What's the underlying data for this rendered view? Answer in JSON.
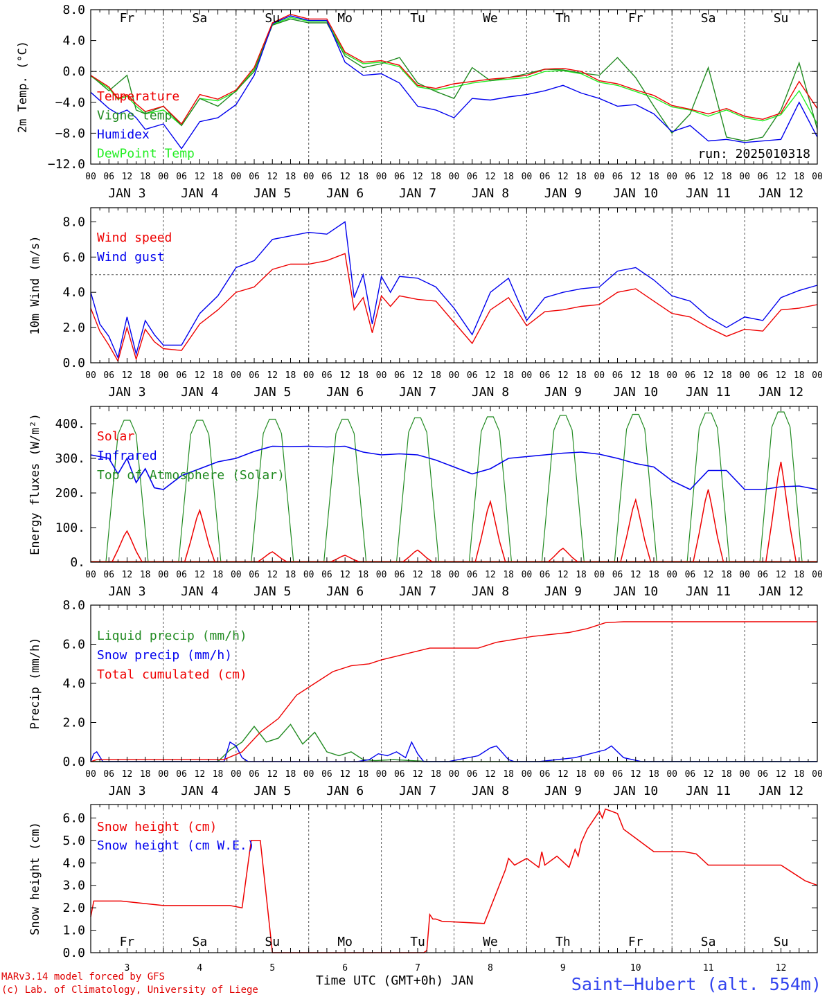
{
  "colors": {
    "red": "#ee0000",
    "blue": "#0000ee",
    "green": "#228b22",
    "lightgreen": "#22ee22",
    "black": "#000000"
  },
  "x_axis": {
    "hour_labels": [
      "00",
      "06",
      "12",
      "18"
    ],
    "date_labels": [
      "JAN  3",
      "JAN  4",
      "JAN  5",
      "JAN  6",
      "JAN  7",
      "JAN  8",
      "JAN  9",
      "JAN 10",
      "JAN 11",
      "JAN 12"
    ],
    "day_names": [
      "Fr",
      "Sa",
      "Su",
      "Mo",
      "Tu",
      "We",
      "Th",
      "Fr",
      "Sa",
      "Su"
    ],
    "day_numbers": [
      "3",
      "4",
      "5",
      "6",
      "7",
      "8",
      "9",
      "10",
      "11",
      "12"
    ],
    "weekend_days": [
      1,
      2,
      8,
      9
    ],
    "title": "Time UTC (GMT+0h) JAN"
  },
  "footer": {
    "credit_line1": "MARv3.14 model forced by GFS",
    "credit_line2": "(c) Lab. of Climatology, University of Liege",
    "station": "Saint–Hubert (alt. 554m)"
  },
  "chart_data": [
    {
      "type": "line",
      "ylabel": "2m Temp. (°C)",
      "ylim": [
        -12,
        8
      ],
      "yticks": [
        "8.0",
        "4.0",
        "0.0",
        "−4.0",
        "−8.0",
        "−12.0"
      ],
      "run_label": "run: 2025010318",
      "x_unit": "hours since JAN 3 00 UTC",
      "x": [
        0,
        6,
        9,
        12,
        15,
        18,
        24,
        30,
        36,
        42,
        48,
        54,
        60,
        66,
        72,
        78,
        84,
        90,
        96,
        102,
        108,
        114,
        120,
        126,
        132,
        138,
        144,
        150,
        156,
        162,
        168,
        174,
        180,
        186,
        192,
        198,
        204,
        210,
        216,
        222,
        228,
        234,
        240
      ],
      "series": [
        {
          "name": "Temperature",
          "color": "red",
          "values": [
            -0.5,
            -2.0,
            -3.5,
            -3.0,
            -4.2,
            -5.2,
            -4.5,
            -6.8,
            -3.0,
            -3.6,
            -2.4,
            0.5,
            6.3,
            7.4,
            6.8,
            6.8,
            2.5,
            1.2,
            1.4,
            0.8,
            -1.8,
            -2.2,
            -1.6,
            -1.3,
            -1.0,
            -0.8,
            -0.5,
            0.3,
            0.4,
            0.0,
            -1.2,
            -1.6,
            -2.4,
            -3.1,
            -4.4,
            -4.9,
            -5.5,
            -4.8,
            -5.8,
            -6.2,
            -5.4,
            -1.3,
            -4.8
          ]
        },
        {
          "name": "Vigne temp",
          "color": "green",
          "values": [
            -0.5,
            -2.5,
            -1.5,
            -0.5,
            -5.0,
            -5.5,
            -4.5,
            -7.0,
            -3.5,
            -4.5,
            -2.5,
            0.0,
            6.0,
            6.8,
            6.3,
            6.3,
            2.0,
            0.5,
            1.0,
            1.8,
            -1.5,
            -2.6,
            -3.5,
            0.5,
            -1.2,
            -0.8,
            -0.3,
            0.3,
            0.2,
            -0.2,
            -0.5,
            1.8,
            -0.8,
            -4.5,
            -8.0,
            -5.5,
            0.5,
            -8.5,
            -9.0,
            -8.5,
            -5.0,
            1.1,
            -7.5
          ]
        },
        {
          "name": "Humidex",
          "color": "blue",
          "values": [
            -2.7,
            -4.8,
            -5.5,
            -5.0,
            -6.0,
            -7.5,
            -6.8,
            -10.0,
            -6.5,
            -6.0,
            -4.3,
            -0.5,
            6.2,
            7.2,
            6.6,
            6.6,
            1.2,
            -0.5,
            -0.3,
            -1.5,
            -4.5,
            -5.0,
            -6.0,
            -3.5,
            -3.7,
            -3.3,
            -3.0,
            -2.5,
            -1.8,
            -2.8,
            -3.5,
            -4.5,
            -4.3,
            -5.5,
            -7.8,
            -7.0,
            -9.0,
            -8.8,
            -9.2,
            -9.0,
            -8.8,
            -4.0,
            -8.5
          ]
        },
        {
          "name": "DewPoint Temp",
          "color": "lightgreen",
          "values": [
            -0.6,
            -2.2,
            -3.6,
            -3.2,
            -4.5,
            -5.5,
            -5.0,
            -7.0,
            -3.5,
            -3.8,
            -2.6,
            0.3,
            6.1,
            7.0,
            6.5,
            6.5,
            2.3,
            1.0,
            1.2,
            0.6,
            -2.0,
            -2.4,
            -2.0,
            -1.5,
            -1.2,
            -1.0,
            -0.8,
            0.0,
            0.1,
            -0.3,
            -1.4,
            -1.8,
            -2.6,
            -3.4,
            -4.6,
            -5.0,
            -5.8,
            -5.0,
            -6.0,
            -6.4,
            -5.6,
            -2.5,
            -6.8
          ]
        }
      ]
    },
    {
      "type": "line",
      "ylabel": "10m Wind (m/s)",
      "ylim": [
        0,
        8.8
      ],
      "yticks": [
        "0.0",
        "2.0",
        "4.0",
        "6.0",
        "8.0"
      ],
      "reference_line": 5,
      "x": [
        0,
        3,
        6,
        9,
        12,
        15,
        18,
        21,
        24,
        30,
        36,
        42,
        48,
        54,
        60,
        66,
        72,
        78,
        84,
        87,
        90,
        93,
        96,
        99,
        102,
        108,
        114,
        120,
        126,
        132,
        138,
        144,
        150,
        156,
        162,
        168,
        174,
        180,
        186,
        192,
        198,
        204,
        210,
        216,
        222,
        228,
        234,
        240
      ],
      "series": [
        {
          "name": "Wind speed",
          "color": "red",
          "values": [
            3.1,
            1.8,
            1.0,
            0.1,
            2.0,
            0.2,
            1.9,
            1.2,
            0.8,
            0.7,
            2.2,
            3.0,
            4.0,
            4.3,
            5.3,
            5.6,
            5.6,
            5.8,
            6.2,
            3.0,
            3.7,
            1.7,
            3.8,
            3.2,
            3.8,
            3.6,
            3.5,
            2.3,
            1.1,
            3.0,
            3.7,
            2.1,
            2.9,
            3.0,
            3.2,
            3.3,
            4.0,
            4.2,
            3.5,
            2.8,
            2.6,
            2.0,
            1.5,
            1.9,
            1.8,
            3.0,
            3.1,
            3.3
          ]
        },
        {
          "name": "Wind gust",
          "color": "blue",
          "values": [
            4.0,
            2.2,
            1.5,
            0.3,
            2.6,
            0.5,
            2.4,
            1.6,
            1.0,
            1.0,
            2.8,
            3.8,
            5.4,
            5.8,
            7.0,
            7.2,
            7.4,
            7.3,
            8.0,
            3.7,
            5.0,
            2.2,
            4.9,
            4.0,
            4.9,
            4.8,
            4.3,
            3.1,
            1.6,
            4.0,
            4.8,
            2.4,
            3.7,
            4.0,
            4.2,
            4.3,
            5.2,
            5.4,
            4.7,
            3.8,
            3.5,
            2.6,
            2.0,
            2.6,
            2.4,
            3.7,
            4.1,
            4.4
          ]
        }
      ]
    },
    {
      "type": "line",
      "ylabel": "Energy fluxes (W/m²)",
      "ylim": [
        0,
        450
      ],
      "yticks": [
        "0.",
        "100.",
        "200.",
        "300.",
        "400."
      ],
      "x_unit": "hours since JAN 3 00 UTC",
      "solar_peaks": [
        90,
        150,
        30,
        20,
        35,
        175,
        40,
        180,
        210,
        290
      ],
      "toa_peaks": [
        410,
        410,
        413,
        413,
        417,
        420,
        424,
        427,
        431,
        434
      ],
      "infrared": {
        "x": [
          0,
          6,
          9,
          12,
          15,
          18,
          21,
          24,
          30,
          36,
          42,
          48,
          54,
          60,
          66,
          72,
          78,
          84,
          90,
          96,
          102,
          108,
          114,
          120,
          126,
          132,
          138,
          144,
          150,
          156,
          162,
          168,
          174,
          180,
          186,
          192,
          198,
          204,
          210,
          216,
          222,
          228,
          234,
          240
        ],
        "values": [
          310,
          300,
          255,
          300,
          230,
          270,
          215,
          210,
          250,
          270,
          290,
          300,
          320,
          335,
          334,
          335,
          333,
          335,
          318,
          310,
          313,
          310,
          295,
          275,
          255,
          270,
          300,
          305,
          310,
          315,
          318,
          312,
          300,
          285,
          275,
          235,
          210,
          265,
          265,
          210,
          210,
          218,
          220,
          210
        ]
      },
      "series_names": [
        {
          "name": "Solar",
          "color": "red"
        },
        {
          "name": "Infrared",
          "color": "blue"
        },
        {
          "name": "Top of Atmosphere (Solar)",
          "color": "green"
        }
      ]
    },
    {
      "type": "line",
      "ylabel": "Precip (mm/h)",
      "ylim": [
        0,
        8
      ],
      "yticks": [
        "0.0",
        "2.0",
        "4.0",
        "6.0",
        "8.0"
      ],
      "series": [
        {
          "name": "Liquid precip (mm/h)",
          "color": "green",
          "x": [
            0,
            42,
            46,
            50,
            54,
            58,
            62,
            66,
            70,
            74,
            78,
            82,
            86,
            90,
            94,
            100,
            106,
            112,
            120,
            168,
            240
          ],
          "values": [
            0,
            0,
            0.6,
            1.0,
            1.8,
            1.0,
            1.2,
            1.9,
            0.9,
            1.5,
            0.5,
            0.3,
            0.5,
            0.1,
            0.05,
            0.1,
            0.05,
            0,
            0,
            0,
            0
          ]
        },
        {
          "name": "Snow precip (mm/h)",
          "color": "blue",
          "x": [
            0,
            1,
            2,
            4,
            6,
            8,
            44,
            46,
            48,
            50,
            52,
            54,
            88,
            92,
            95,
            98,
            101,
            104,
            106,
            108,
            110,
            112,
            118,
            128,
            132,
            134,
            138,
            140,
            148,
            160,
            170,
            172,
            176,
            182,
            192,
            240
          ],
          "values": [
            0,
            0.4,
            0.5,
            0,
            0,
            0,
            0,
            1.0,
            0.8,
            0.2,
            0,
            0,
            0,
            0.1,
            0.4,
            0.3,
            0.5,
            0.2,
            1.0,
            0.4,
            0,
            0,
            0,
            0.3,
            0.7,
            0.8,
            0.1,
            0,
            0,
            0.2,
            0.6,
            0.8,
            0.2,
            0,
            0,
            0
          ]
        },
        {
          "name": "Total cumulated (cm)",
          "color": "red",
          "x": [
            0,
            2,
            44,
            50,
            56,
            62,
            68,
            74,
            80,
            86,
            92,
            96,
            104,
            112,
            118,
            128,
            134,
            146,
            158,
            164,
            170,
            176,
            182,
            240
          ],
          "values": [
            0,
            0.1,
            0.1,
            0.5,
            1.5,
            2.2,
            3.4,
            4.0,
            4.6,
            4.9,
            5.0,
            5.2,
            5.5,
            5.8,
            5.8,
            5.8,
            6.1,
            6.4,
            6.6,
            6.8,
            7.1,
            7.15,
            7.15,
            7.15
          ]
        }
      ]
    },
    {
      "type": "line",
      "ylabel": "Snow height (cm)",
      "ylim": [
        0,
        6.6
      ],
      "yticks": [
        "0.0",
        "1.0",
        "2.0",
        "3.0",
        "4.0",
        "5.0",
        "6.0"
      ],
      "series": [
        {
          "name": "Snow height (cm)",
          "color": "red",
          "x": [
            0,
            1,
            10,
            24,
            46,
            50,
            53,
            56,
            60,
            90,
            110,
            111,
            112,
            113,
            114,
            116,
            130,
            137,
            138,
            140,
            144,
            148,
            149,
            150,
            154,
            158,
            160,
            161,
            162,
            164,
            166,
            168,
            169,
            170,
            172,
            174,
            176,
            180,
            186,
            196,
            200,
            204,
            216,
            228,
            236,
            240
          ],
          "values": [
            1.6,
            2.3,
            2.3,
            2.1,
            2.1,
            2.0,
            5.0,
            5.0,
            0,
            0,
            0,
            0.1,
            1.7,
            1.5,
            1.5,
            1.4,
            1.3,
            3.7,
            4.2,
            3.9,
            4.2,
            3.8,
            4.5,
            3.9,
            4.3,
            3.8,
            4.6,
            4.3,
            4.9,
            5.5,
            5.9,
            6.3,
            6.0,
            6.4,
            6.3,
            6.2,
            5.5,
            5.1,
            4.5,
            4.5,
            4.4,
            3.9,
            3.9,
            3.9,
            3.2,
            3.0
          ]
        },
        {
          "name": "Snow height (cm W.E.)",
          "color": "blue",
          "x": [],
          "values": []
        }
      ]
    }
  ]
}
